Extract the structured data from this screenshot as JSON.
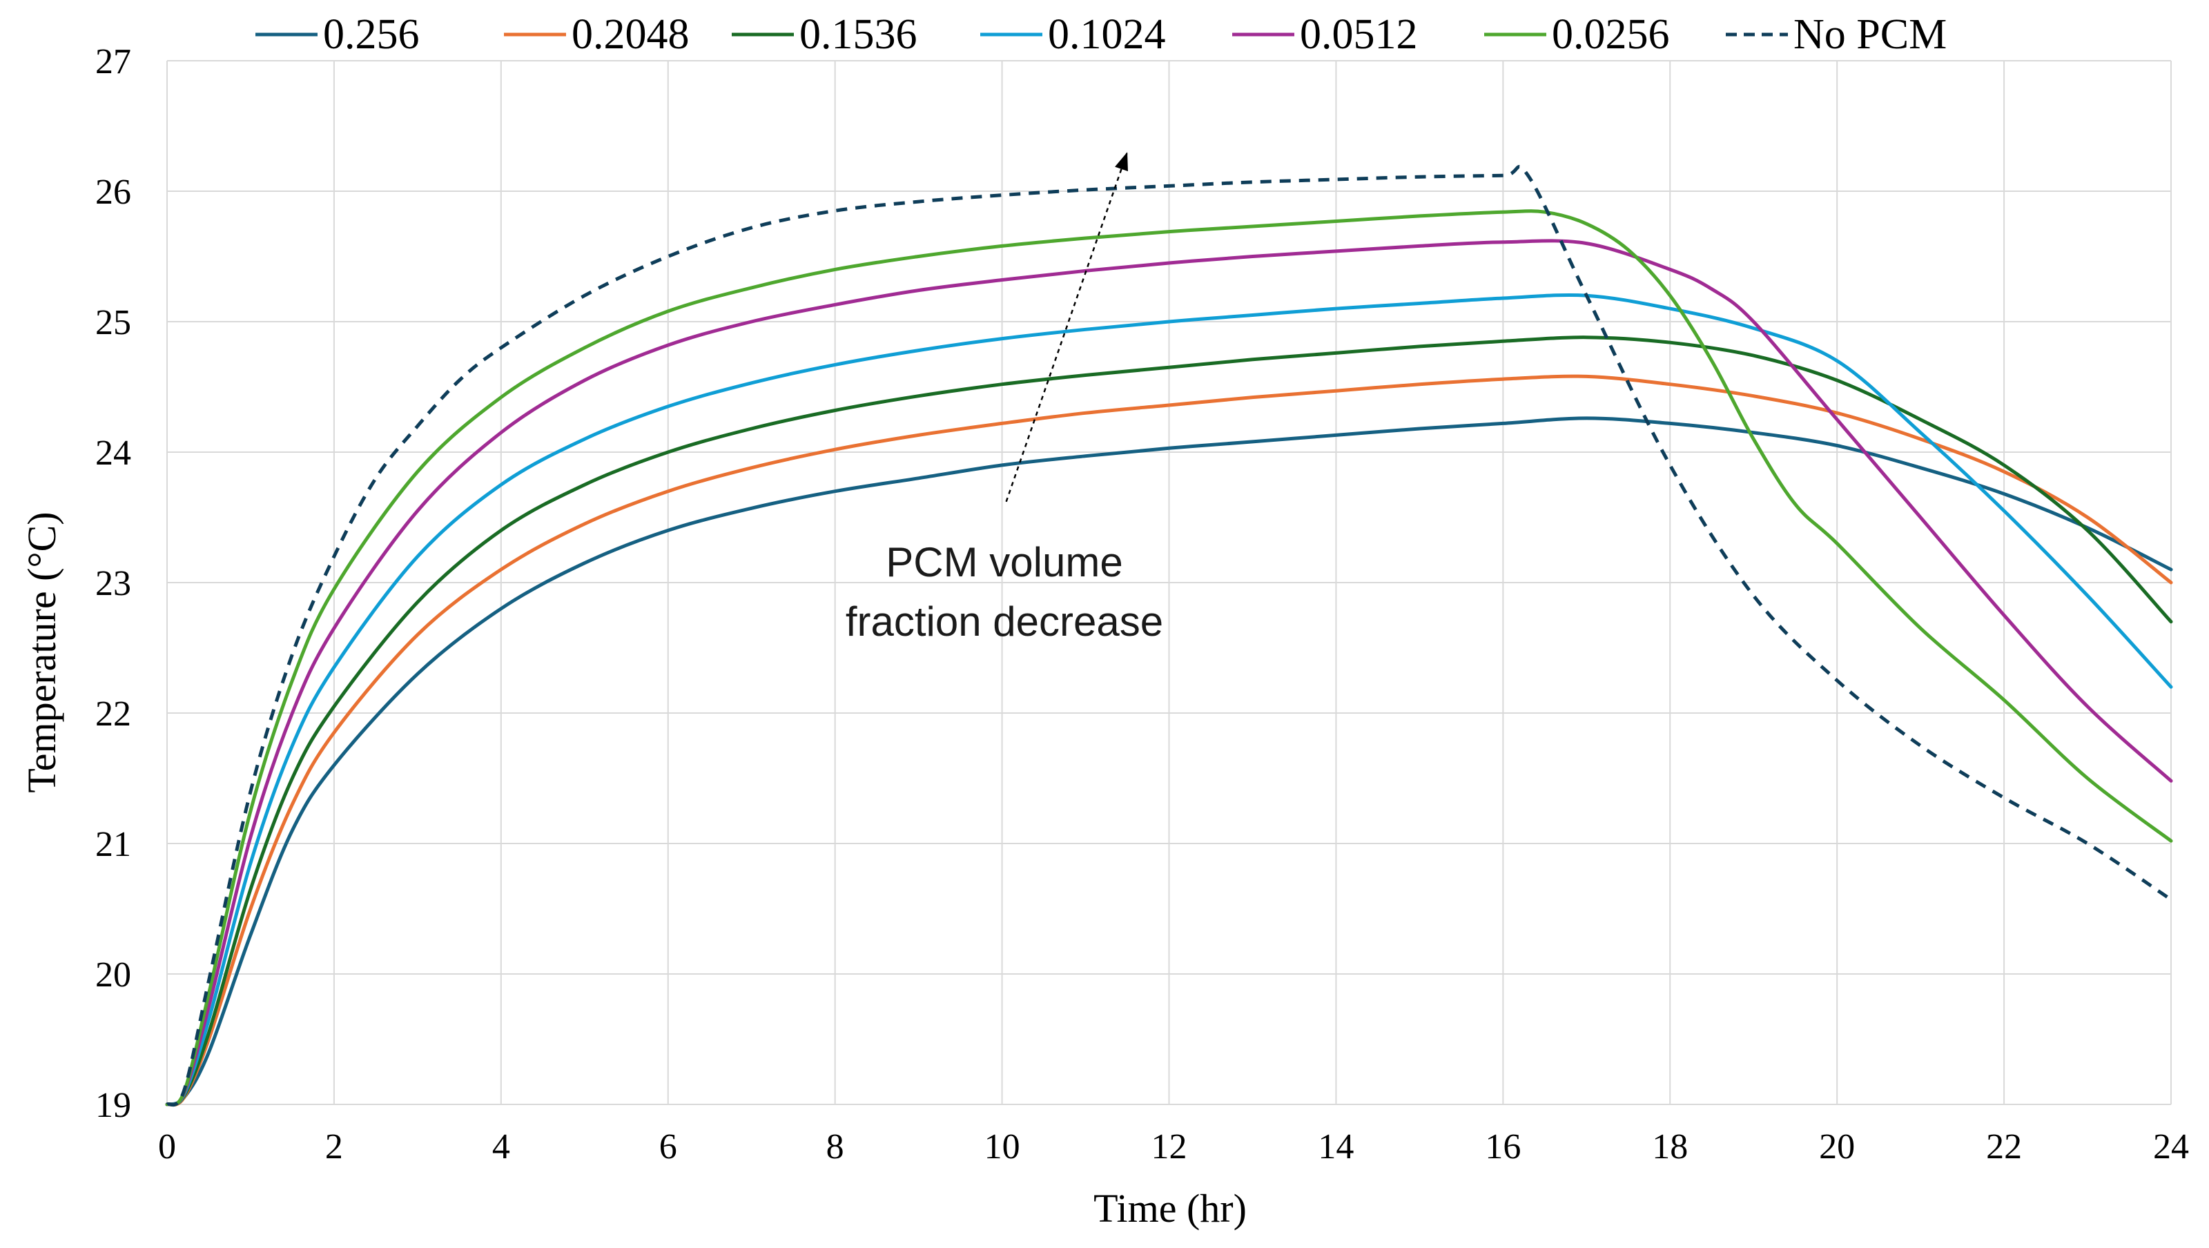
{
  "chart_data": {
    "type": "line",
    "title": "",
    "xlabel": "Time (hr)",
    "ylabel": "Temperature  (°C)",
    "xlim": [
      0,
      24
    ],
    "ylim": [
      19,
      27
    ],
    "xticks": [
      0,
      2,
      4,
      6,
      8,
      10,
      12,
      14,
      16,
      18,
      20,
      22,
      24
    ],
    "yticks": [
      19,
      20,
      21,
      22,
      23,
      24,
      25,
      26,
      27
    ],
    "grid": true,
    "legend_position": "top",
    "series": [
      {
        "name": "0.256",
        "color": "#156082",
        "dash": "solid",
        "x": [
          0,
          0.2,
          0.5,
          1,
          1.5,
          2,
          3,
          4,
          5,
          6,
          7,
          8,
          9,
          10,
          11,
          12,
          13,
          14,
          15,
          16,
          17,
          18,
          19,
          20,
          21,
          22,
          23,
          24
        ],
        "y": [
          19,
          19.05,
          19.4,
          20.3,
          21.1,
          21.6,
          22.3,
          22.8,
          23.15,
          23.4,
          23.57,
          23.7,
          23.8,
          23.9,
          23.97,
          24.03,
          24.08,
          24.13,
          24.18,
          24.22,
          24.26,
          24.22,
          24.15,
          24.05,
          23.88,
          23.68,
          23.42,
          23.1
        ]
      },
      {
        "name": "0.2048",
        "color": "#E97132",
        "dash": "solid",
        "x": [
          0,
          0.2,
          0.5,
          1,
          1.5,
          2,
          3,
          4,
          5,
          6,
          7,
          8,
          9,
          10,
          11,
          12,
          13,
          14,
          15,
          16,
          17,
          18,
          19,
          20,
          21,
          22,
          23,
          24
        ],
        "y": [
          19,
          19.05,
          19.5,
          20.5,
          21.3,
          21.85,
          22.6,
          23.1,
          23.45,
          23.7,
          23.88,
          24.02,
          24.13,
          24.22,
          24.3,
          24.36,
          24.42,
          24.47,
          24.52,
          24.56,
          24.58,
          24.52,
          24.43,
          24.3,
          24.1,
          23.85,
          23.5,
          23.0
        ]
      },
      {
        "name": "0.1536",
        "color": "#196B24",
        "dash": "solid",
        "x": [
          0,
          0.2,
          0.5,
          1,
          1.5,
          2,
          3,
          4,
          5,
          6,
          7,
          8,
          9,
          10,
          11,
          12,
          13,
          14,
          15,
          16,
          17,
          18,
          19,
          20,
          21,
          22,
          23,
          24
        ],
        "y": [
          19,
          19.06,
          19.55,
          20.65,
          21.5,
          22.05,
          22.85,
          23.4,
          23.75,
          24.0,
          24.18,
          24.32,
          24.43,
          24.52,
          24.59,
          24.65,
          24.71,
          24.76,
          24.81,
          24.85,
          24.88,
          24.84,
          24.74,
          24.55,
          24.25,
          23.9,
          23.4,
          22.7
        ]
      },
      {
        "name": "0.1024",
        "color": "#0F9ED5",
        "dash": "solid",
        "x": [
          0,
          0.2,
          0.5,
          1,
          1.5,
          2,
          3,
          4,
          5,
          6,
          7,
          8,
          9,
          10,
          11,
          12,
          13,
          14,
          15,
          16,
          17,
          18,
          19,
          20,
          21,
          22,
          23,
          24
        ],
        "y": [
          19,
          19.07,
          19.65,
          20.85,
          21.75,
          22.35,
          23.2,
          23.75,
          24.1,
          24.35,
          24.53,
          24.67,
          24.78,
          24.87,
          24.94,
          25.0,
          25.05,
          25.1,
          25.14,
          25.18,
          25.2,
          25.1,
          24.95,
          24.7,
          24.15,
          23.55,
          22.9,
          22.2
        ]
      },
      {
        "name": "0.0512",
        "color": "#A02B93",
        "dash": "solid",
        "x": [
          0,
          0.2,
          0.5,
          1,
          1.5,
          2,
          3,
          4,
          5,
          6,
          7,
          8,
          9,
          10,
          11,
          12,
          13,
          14,
          15,
          16,
          17,
          18,
          18.5,
          19,
          20,
          21,
          22,
          23,
          24
        ],
        "y": [
          19,
          19.08,
          19.75,
          21.05,
          22.0,
          22.65,
          23.55,
          24.15,
          24.55,
          24.82,
          25.0,
          25.13,
          25.24,
          25.32,
          25.39,
          25.45,
          25.5,
          25.54,
          25.58,
          25.61,
          25.6,
          25.4,
          25.25,
          25.0,
          24.25,
          23.5,
          22.75,
          22.05,
          21.48
        ]
      },
      {
        "name": "0.0256",
        "color": "#4EA72E",
        "dash": "solid",
        "x": [
          0,
          0.2,
          0.5,
          1,
          1.5,
          2,
          3,
          4,
          5,
          6,
          7,
          8,
          9,
          10,
          11,
          12,
          13,
          14,
          15,
          16,
          16.5,
          17,
          17.5,
          18,
          18.5,
          19,
          19.5,
          20,
          21,
          22,
          23,
          24
        ],
        "y": [
          19,
          19.09,
          19.85,
          21.25,
          22.25,
          22.95,
          23.85,
          24.42,
          24.8,
          25.08,
          25.26,
          25.4,
          25.5,
          25.58,
          25.64,
          25.69,
          25.73,
          25.77,
          25.81,
          25.84,
          25.84,
          25.75,
          25.55,
          25.2,
          24.7,
          24.1,
          23.6,
          23.3,
          22.65,
          22.1,
          21.5,
          21.02
        ]
      },
      {
        "name": "No PCM",
        "color": "#0E3D59",
        "dash": "dashed",
        "x": [
          0,
          0.2,
          0.5,
          1,
          1.5,
          2,
          2.5,
          3,
          3.5,
          4,
          5,
          6,
          7,
          8,
          9,
          10,
          11,
          12,
          13,
          14,
          15,
          16,
          16.3,
          17,
          18,
          19,
          20,
          21,
          22,
          23,
          24
        ],
        "y": [
          19,
          19.1,
          19.95,
          21.4,
          22.45,
          23.2,
          23.8,
          24.2,
          24.55,
          24.8,
          25.2,
          25.5,
          25.72,
          25.85,
          25.92,
          25.97,
          26.01,
          26.04,
          26.07,
          26.09,
          26.11,
          26.12,
          26.12,
          25.2,
          23.9,
          22.9,
          22.25,
          21.75,
          21.35,
          21.0,
          20.57
        ]
      }
    ],
    "annotations": [
      {
        "text_lines": [
          "PCM volume",
          "fraction decrease"
        ],
        "arrow_from": [
          10.05,
          23.62
        ],
        "arrow_to": [
          11.5,
          26.3
        ]
      }
    ]
  }
}
